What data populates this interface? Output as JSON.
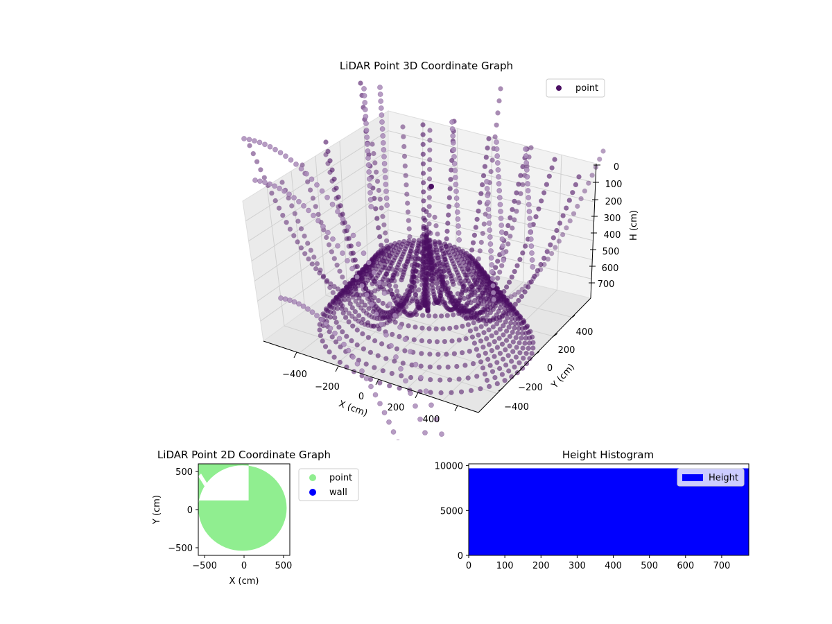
{
  "colors": {
    "point3d": "#4b0f63",
    "point3d_light": "#a98bb8",
    "point2d": "#90ee90",
    "wall": "#0000ff",
    "hist": "#0000ff"
  },
  "chart_data": [
    {
      "type": "scatter",
      "projection": "3d",
      "title": "LiDAR Point 3D Coordinate Graph",
      "xlabel": "X (cm)",
      "ylabel": "Y (cm)",
      "zlabel": "H (cm)",
      "x_ticks": [
        "−400",
        "−200",
        "0",
        "200",
        "400"
      ],
      "y_ticks": [
        "−400",
        "−200",
        "0",
        "200",
        "400"
      ],
      "z_ticks": [
        "0",
        "100",
        "200",
        "300",
        "400",
        "500",
        "600",
        "700"
      ],
      "z_inverted": true,
      "legend": [
        "point"
      ],
      "legend_position": "top-right",
      "grid": true,
      "series": [
        {
          "name": "point",
          "color": "#4b0f63"
        }
      ]
    },
    {
      "type": "scatter",
      "title": "LiDAR Point 2D Coordinate Graph",
      "xlabel": "X (cm)",
      "ylabel": "Y (cm)",
      "x_ticks": [
        "−500",
        "0",
        "500"
      ],
      "y_ticks": [
        "−500",
        "0",
        "500"
      ],
      "xlim": [
        -580,
        580
      ],
      "ylim": [
        -600,
        600
      ],
      "legend": [
        "point",
        "wall"
      ],
      "legend_position": "outside-right",
      "series": [
        {
          "name": "point",
          "color": "#90ee90"
        },
        {
          "name": "wall",
          "color": "#0000ff"
        }
      ]
    },
    {
      "type": "bar",
      "title": "Height Histogram",
      "x_ticks": [
        "0",
        "100",
        "200",
        "300",
        "400",
        "500",
        "600",
        "700"
      ],
      "y_ticks": [
        "0",
        "5000",
        "10000"
      ],
      "xlim": [
        0,
        775
      ],
      "ylim": [
        0,
        10200
      ],
      "bin_range": [
        0,
        775
      ],
      "count": 9700,
      "legend": [
        "Height"
      ],
      "legend_position": "top-right",
      "series": [
        {
          "name": "Height",
          "color": "#0000ff"
        }
      ]
    }
  ]
}
